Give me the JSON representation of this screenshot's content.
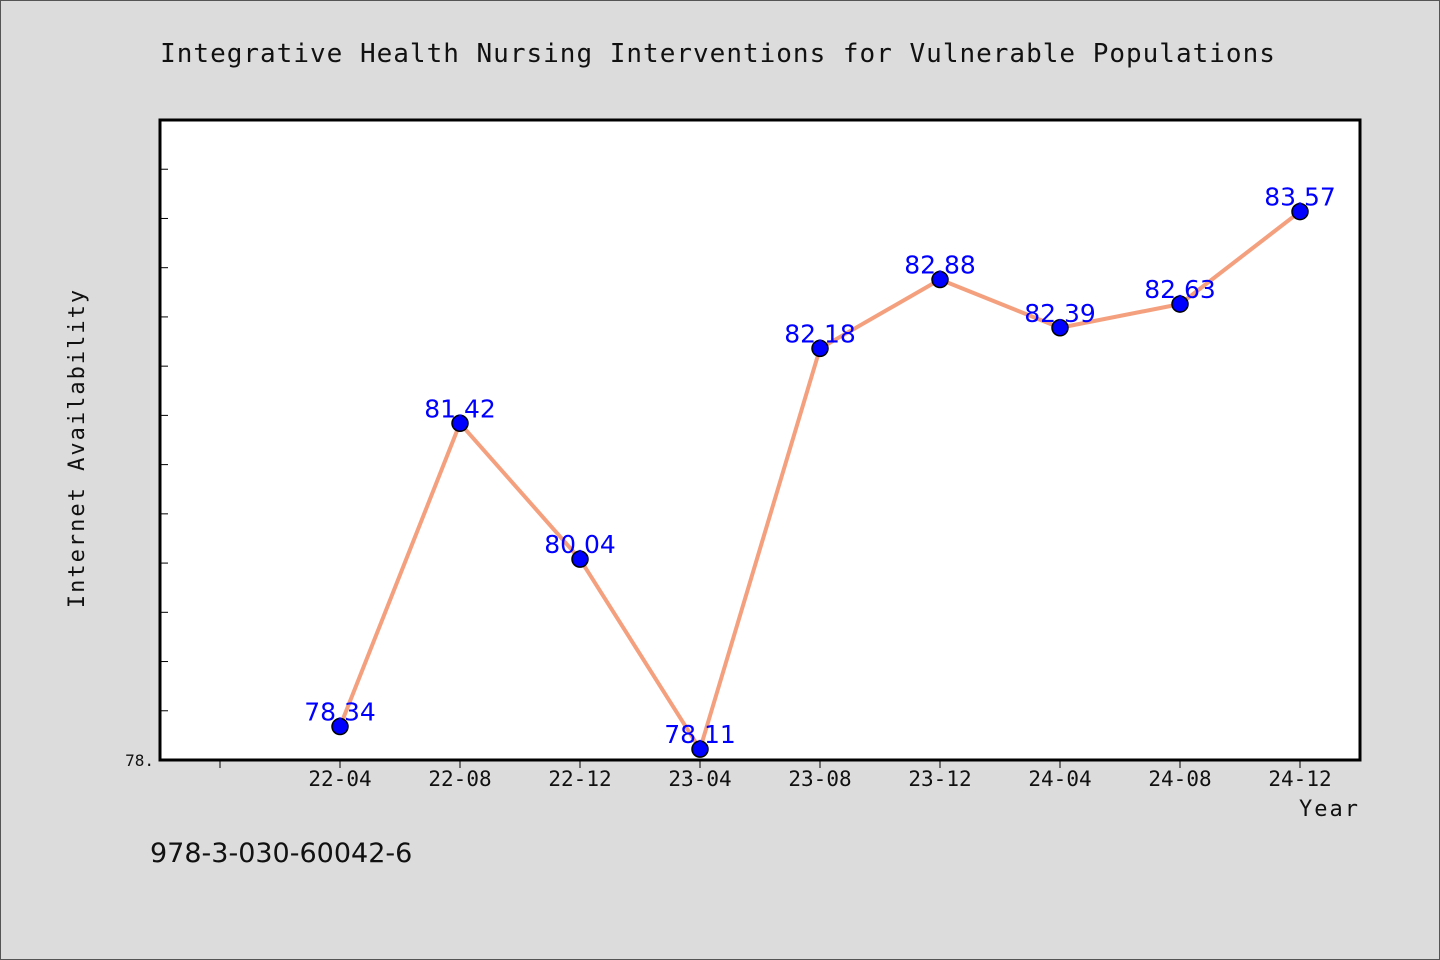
{
  "footer": {
    "isbn": "978-3-030-60042-6"
  },
  "colors": {
    "line": "#f4a07e",
    "marker": "#0000ff",
    "label": "#0000ff",
    "background": "#dcdcdc",
    "plot_bg": "#ffffff"
  },
  "chart_data": {
    "type": "line",
    "title": "Integrative Health Nursing Interventions for Vulnerable Populations",
    "xlabel": "Year",
    "ylabel": "Internet Availability",
    "categories": [
      "22-04",
      "22-08",
      "22-12",
      "23-04",
      "23-08",
      "23-12",
      "24-04",
      "24-08",
      "24-12"
    ],
    "series": [
      {
        "values": [
          78.34,
          81.42,
          80.04,
          78.11,
          82.18,
          82.88,
          82.39,
          82.63,
          83.57
        ]
      }
    ],
    "data_labels": [
      "78.34",
      "81.42",
      "80.04",
      "78.11",
      "82.18",
      "82.88",
      "82.39",
      "82.63",
      "83.57"
    ],
    "y_tick_label": "78.",
    "ylim": [
      78.0,
      84.5
    ],
    "grid": false,
    "legend": "none"
  }
}
